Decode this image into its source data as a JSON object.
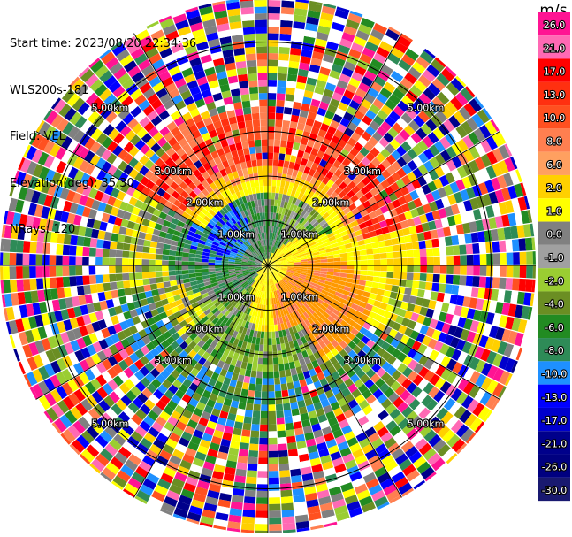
{
  "header": {
    "start_time": "Start time: 2023/08/20 22:34:36",
    "instrument": "WLS200s-181",
    "field": "Field: VEL",
    "elevation": "Elevation(deg): 35.30",
    "nrays": "NRays: 120"
  },
  "chart_data": {
    "type": "heatmap",
    "projection": "polar-ppi",
    "field": "VEL",
    "units": "m/s",
    "n_rays": 120,
    "range_rings_km": [
      1.0,
      2.0,
      3.0,
      5.0
    ],
    "range_ring_labels": [
      "1.00km",
      "2.00km",
      "3.00km",
      "5.00km"
    ],
    "max_range_km": 6.0,
    "colorbar": {
      "title": "m/s",
      "ticks": [
        "26.0",
        "21.0",
        "17.0",
        "13.0",
        "10.0",
        "8.0",
        "6.0",
        "2.0",
        "1.0",
        "0.0",
        "-1.0",
        "-2.0",
        "-4.0",
        "-6.0",
        "-8.0",
        "-10.0",
        "-13.0",
        "-17.0",
        "-21.0",
        "-26.0",
        "-30.0"
      ],
      "colors": [
        "#ff1493",
        "#ff69b4",
        "#ff0000",
        "#ff3010",
        "#ff5020",
        "#ff7f50",
        "#ffa060",
        "#ffd000",
        "#ffff00",
        "#808080",
        "#a0a0a0",
        "#9acd32",
        "#6b8e23",
        "#228b22",
        "#2e8b57",
        "#1e90ff",
        "#0000ff",
        "#0000cd",
        "#00008b",
        "#000080",
        "#191970"
      ]
    }
  }
}
